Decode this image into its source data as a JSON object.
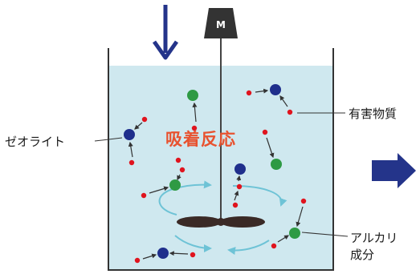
{
  "labels": {
    "motor": "M",
    "reaction": "吸着反応",
    "harmful": "有害物質",
    "zeolite": "ゼオライト",
    "alkali_line1": "アルカリ",
    "alkali_line2": "成分"
  },
  "colors": {
    "water": "#cfe8ef",
    "tank_line": "#333333",
    "arrow": "#24348a",
    "zeolite": "#1f2f8c",
    "alkali": "#2e9a44",
    "harmful": "#e0141e",
    "swirl": "#6ec3d6",
    "reaction_text": "#e8522f"
  },
  "icons": {
    "inflow": "down-arrow-icon",
    "outflow": "right-arrow-icon",
    "motor": "motor-icon",
    "impeller": "impeller-icon"
  }
}
